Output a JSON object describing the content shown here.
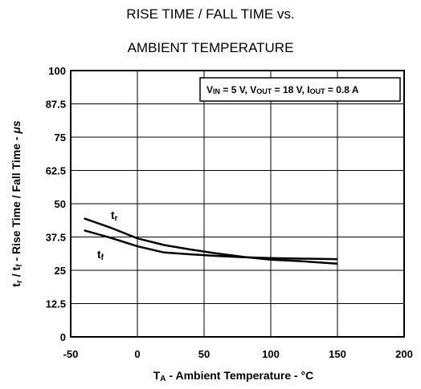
{
  "chart_data": {
    "type": "line",
    "title_line1": "RISE TIME / FALL TIME vs.",
    "title_line2": "AMBIENT TEMPERATURE",
    "xlabel": {
      "main": "T",
      "sub": "A",
      "rest": " - Ambient Temperature - °C"
    },
    "ylabel": {
      "p1": "t",
      "s1": "r",
      "p2": " / t",
      "s2": "f",
      "p3": " - Rise Time / Fall Time - ",
      "unit": "μs"
    },
    "xlim": [
      -50,
      200
    ],
    "ylim": [
      0,
      100
    ],
    "xticks": [
      "-50",
      "0",
      "50",
      "100",
      "150",
      "200"
    ],
    "yticks": [
      "0",
      "12.5",
      "25",
      "37.5",
      "50",
      "62.5",
      "75",
      "87.5",
      "100"
    ],
    "grid": true,
    "conditions": [
      {
        "main": "V",
        "sub": "IN",
        "rest": " = 5 V, "
      },
      {
        "main": "V",
        "sub": "OUT",
        "rest": " = 18 V, "
      },
      {
        "main": "I",
        "sub": "OUT",
        "rest": " = 0.8 A"
      }
    ],
    "series": [
      {
        "name": "tr",
        "label_main": "t",
        "label_sub": "r",
        "x": [
          -40,
          -20,
          0,
          20,
          40,
          60,
          80,
          100,
          120,
          150
        ],
        "y": [
          44.5,
          41,
          37,
          34.5,
          32.8,
          31.3,
          30,
          29,
          28.5,
          27.5
        ]
      },
      {
        "name": "tf",
        "label_main": "t",
        "label_sub": "f",
        "x": [
          -40,
          -20,
          0,
          20,
          40,
          60,
          80,
          100,
          120,
          150
        ],
        "y": [
          40,
          37.2,
          34,
          31.7,
          31,
          30.4,
          29.9,
          29.6,
          29.4,
          29.2
        ]
      }
    ]
  }
}
